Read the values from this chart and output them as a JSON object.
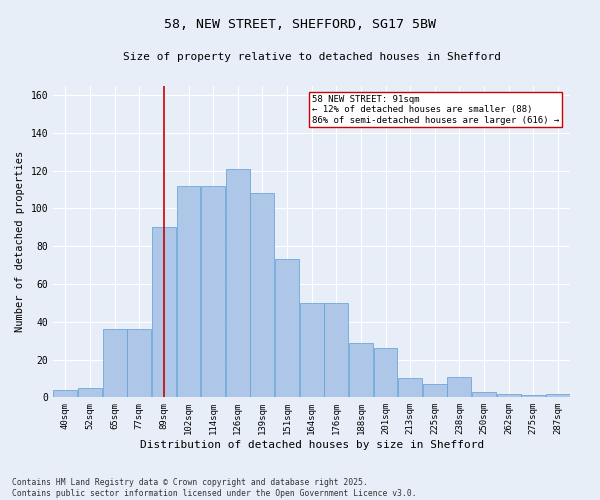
{
  "title1": "58, NEW STREET, SHEFFORD, SG17 5BW",
  "title2": "Size of property relative to detached houses in Shefford",
  "xlabel": "Distribution of detached houses by size in Shefford",
  "ylabel": "Number of detached properties",
  "categories": [
    "40sqm",
    "52sqm",
    "65sqm",
    "77sqm",
    "89sqm",
    "102sqm",
    "114sqm",
    "126sqm",
    "139sqm",
    "151sqm",
    "164sqm",
    "176sqm",
    "188sqm",
    "201sqm",
    "213sqm",
    "225sqm",
    "238sqm",
    "250sqm",
    "262sqm",
    "275sqm",
    "287sqm"
  ],
  "values": [
    4,
    5,
    36,
    36,
    90,
    112,
    112,
    121,
    108,
    73,
    50,
    50,
    29,
    26,
    10,
    7,
    11,
    3,
    2,
    1,
    2
  ],
  "bar_color": "#aec6e8",
  "bar_edge_color": "#5a9fd4",
  "vline_x_index": 4,
  "vline_color": "#cc0000",
  "annotation_text": "58 NEW STREET: 91sqm\n← 12% of detached houses are smaller (88)\n86% of semi-detached houses are larger (616) →",
  "annotation_box_color": "#ffffff",
  "annotation_box_edge": "#cc0000",
  "ylim": [
    0,
    165
  ],
  "yticks": [
    0,
    20,
    40,
    60,
    80,
    100,
    120,
    140,
    160
  ],
  "bg_color": "#e8eef8",
  "grid_color": "#ffffff",
  "footnote": "Contains HM Land Registry data © Crown copyright and database right 2025.\nContains public sector information licensed under the Open Government Licence v3.0."
}
